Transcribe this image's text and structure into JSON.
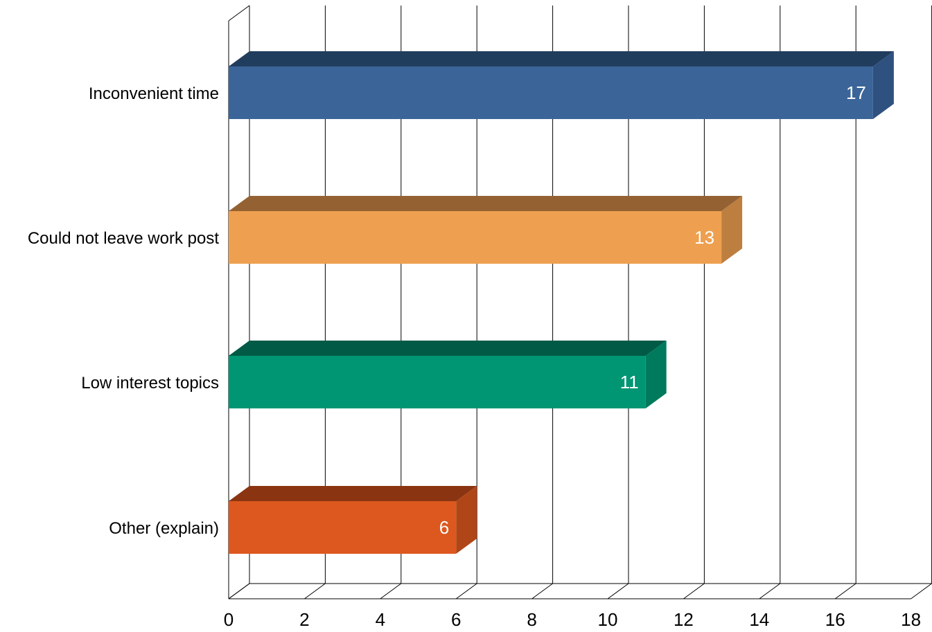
{
  "chart_data": {
    "type": "bar",
    "orientation": "horizontal",
    "style": "3d",
    "categories": [
      "Inconvenient time",
      "Could not leave work post",
      "Low interest topics",
      "Other (explain)"
    ],
    "values": [
      17,
      13,
      11,
      6
    ],
    "data_labels": [
      "17",
      "13",
      "11",
      "6"
    ],
    "colors": [
      "#3b6598",
      "#eea050",
      "#009673",
      "#dc581e"
    ],
    "top_colors": [
      "#213d5e",
      "#946232",
      "#005a46",
      "#8a3412"
    ],
    "side_colors": [
      "#2f5180",
      "#bd7f40",
      "#007a5d",
      "#b04617"
    ],
    "xlim": [
      0,
      18
    ],
    "xticks": [
      0,
      2,
      4,
      6,
      8,
      10,
      12,
      14,
      16,
      18
    ],
    "xtick_labels": [
      "0",
      "2",
      "4",
      "6",
      "8",
      "10",
      "12",
      "14",
      "16",
      "18"
    ],
    "grid": true,
    "title": "",
    "xlabel": "",
    "ylabel": "",
    "legend": false
  }
}
